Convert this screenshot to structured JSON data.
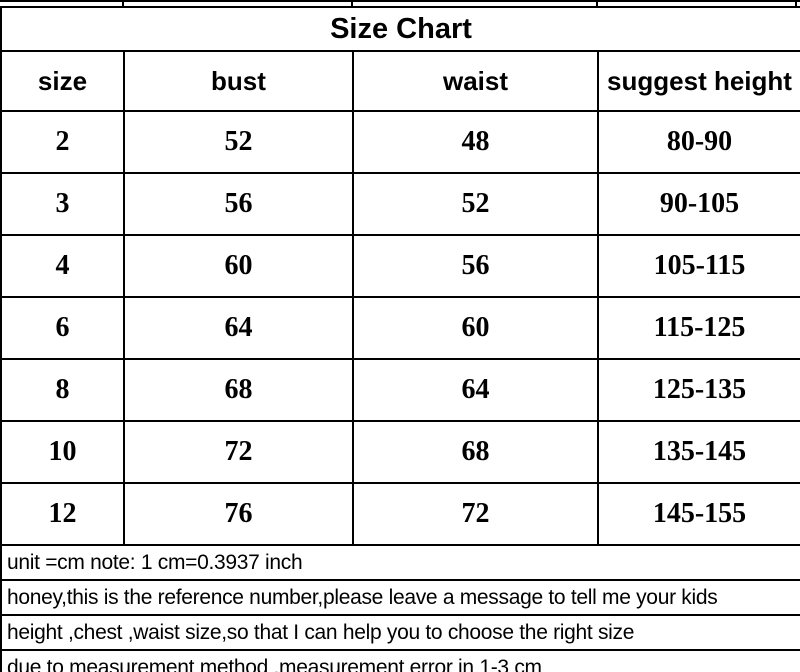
{
  "chart_data": {
    "type": "table",
    "title": "Size Chart",
    "unit": "cm",
    "columns": [
      "size",
      "bust",
      "waist",
      "suggest height"
    ],
    "rows": [
      [
        "2",
        "52",
        "48",
        "80-90"
      ],
      [
        "3",
        "56",
        "52",
        "90-105"
      ],
      [
        "4",
        "60",
        "56",
        "105-115"
      ],
      [
        "6",
        "64",
        "60",
        "115-125"
      ],
      [
        "8",
        "68",
        "64",
        "125-135"
      ],
      [
        "10",
        "72",
        "68",
        "135-145"
      ],
      [
        "12",
        "76",
        "72",
        "145-155"
      ]
    ],
    "notes": [
      "unit =cm  note: 1 cm=0.3937 inch",
      "honey,this is the reference number,please leave a message to tell me your kids",
      "height ,chest ,waist size,so that I can help you to choose the right size",
      "due to measurement method ,measurement error in 1-3 cm"
    ]
  },
  "colors": {
    "border": "#000000",
    "text": "#000000",
    "background": "#ffffff",
    "faint_gridline": "#bfbfbf"
  }
}
